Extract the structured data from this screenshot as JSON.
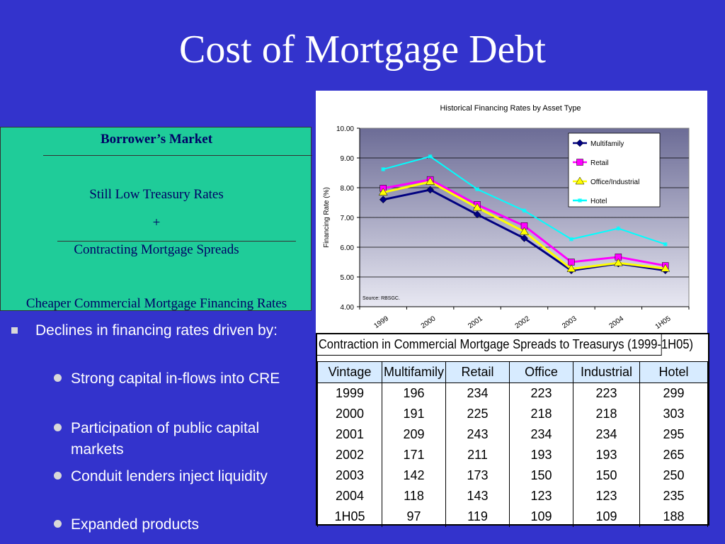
{
  "slide": {
    "title": "Cost of Mortgage Debt"
  },
  "callout": {
    "header": "Borrower’s Market",
    "line1": "Still Low Treasury Rates",
    "plus": "+",
    "line2": "Contracting Mortgage Spreads",
    "result": "Cheaper Commercial Mortgage Financing Rates"
  },
  "bullets": {
    "main": "Declines in financing rates driven by:",
    "subs": [
      " Strong capital in-flows into CRE",
      " Participation of public capital markets",
      " Conduit lenders inject liquidity",
      " Expanded products"
    ]
  },
  "chart_data": {
    "type": "line",
    "title": "Historical Financing Rates by Asset Type",
    "ylabel": "Financing Rate (%)",
    "xlabel": "",
    "source": "Source: RBSGC.",
    "categories": [
      "1999",
      "2000",
      "2001",
      "2002",
      "2003",
      "2004",
      "1H05"
    ],
    "ylim": [
      4.0,
      10.0
    ],
    "yticks": [
      "4.00",
      "5.00",
      "6.00",
      "7.00",
      "8.00",
      "9.00",
      "10.00"
    ],
    "grid": true,
    "legend": "top-right",
    "series": [
      {
        "name": "Multifamily",
        "color": "#000080",
        "marker": "diamond",
        "values": [
          7.6,
          7.93,
          7.1,
          6.3,
          5.22,
          5.45,
          5.22
        ]
      },
      {
        "name": "Retail",
        "color": "#ff00ff",
        "marker": "square",
        "values": [
          7.98,
          8.27,
          7.43,
          6.72,
          5.5,
          5.67,
          5.38
        ]
      },
      {
        "name": "Office/Industrial",
        "color": "#ffff00",
        "marker": "triangle",
        "values": [
          7.84,
          8.2,
          7.33,
          6.52,
          5.27,
          5.47,
          5.28
        ]
      },
      {
        "name": "Hotel",
        "color": "#00ffff",
        "marker": "star",
        "values": [
          8.62,
          9.05,
          7.95,
          7.23,
          6.27,
          6.63,
          6.1
        ]
      }
    ]
  },
  "table": {
    "title": "Contraction in Commercial Mortgage Spreads to Treasurys (1999-1H05)",
    "headers": [
      "Vintage",
      "Multifamily",
      "Retail",
      "Office",
      "Industrial",
      "Hotel"
    ],
    "rows": [
      [
        "1999",
        "196",
        "234",
        "223",
        "223",
        "299"
      ],
      [
        "2000",
        "191",
        "225",
        "218",
        "218",
        "303"
      ],
      [
        "2001",
        "209",
        "243",
        "234",
        "234",
        "295"
      ],
      [
        "2002",
        "171",
        "211",
        "193",
        "193",
        "265"
      ],
      [
        "2003",
        "142",
        "173",
        "150",
        "150",
        "250"
      ],
      [
        "2004",
        "118",
        "143",
        "123",
        "123",
        "235"
      ],
      [
        "1H05",
        "97",
        "119",
        "109",
        "109",
        "188"
      ]
    ]
  }
}
